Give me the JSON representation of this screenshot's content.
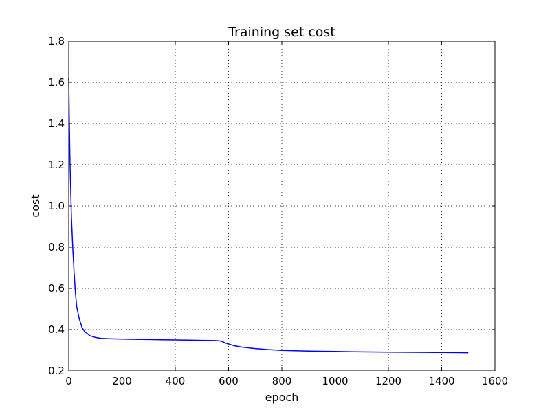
{
  "chart_data": {
    "type": "line",
    "title": "Training set cost",
    "xlabel": "epoch",
    "ylabel": "cost",
    "xlim": [
      0,
      1600
    ],
    "ylim": [
      0.2,
      1.8
    ],
    "x_ticks": [
      0,
      200,
      400,
      600,
      800,
      1000,
      1200,
      1400,
      1600
    ],
    "y_ticks": [
      0.2,
      0.4,
      0.6,
      0.8,
      1.0,
      1.2,
      1.4,
      1.6,
      1.8
    ],
    "x_tick_labels": [
      "0",
      "200",
      "400",
      "600",
      "800",
      "1000",
      "1200",
      "1400",
      "1600"
    ],
    "y_tick_labels": [
      "0.2",
      "0.4",
      "0.6",
      "0.8",
      "1.0",
      "1.2",
      "1.4",
      "1.6",
      "1.8"
    ],
    "grid": true,
    "line_color": "#0000ff",
    "series": [
      {
        "x": [
          0,
          2,
          5,
          10,
          15,
          20,
          25,
          30,
          40,
          50,
          60,
          70,
          80,
          100,
          120,
          150,
          200,
          250,
          300,
          350,
          400,
          450,
          500,
          550,
          570,
          580,
          590,
          600,
          620,
          650,
          700,
          750,
          800,
          900,
          1000,
          1100,
          1200,
          1300,
          1400,
          1500
        ],
        "y": [
          1.62,
          1.43,
          1.2,
          0.95,
          0.8,
          0.68,
          0.58,
          0.51,
          0.45,
          0.41,
          0.39,
          0.38,
          0.37,
          0.362,
          0.358,
          0.356,
          0.354,
          0.353,
          0.352,
          0.351,
          0.35,
          0.349,
          0.348,
          0.347,
          0.345,
          0.34,
          0.334,
          0.33,
          0.322,
          0.315,
          0.308,
          0.303,
          0.299,
          0.296,
          0.294,
          0.292,
          0.291,
          0.29,
          0.289,
          0.288
        ]
      }
    ]
  }
}
